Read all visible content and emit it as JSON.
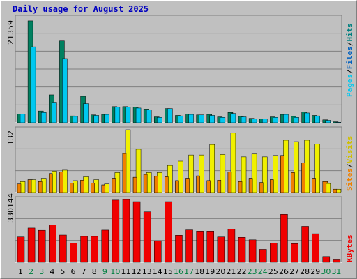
{
  "colors": {
    "background": "#c0c0c0",
    "title": "#0000c0",
    "weekend_label": "#008040",
    "weekday_label": "#000000",
    "pages": "#00c8f0",
    "files": "#008060",
    "hits": "#008080",
    "sites": "#f08000",
    "visits": "#f0f000",
    "kbytes": "#f00000"
  },
  "chart_data": [
    {
      "type": "bar",
      "title": "Daily usage for August 2025",
      "ymax_label": "21359",
      "ylim": [
        0,
        21359
      ],
      "categories": [
        "1",
        "2",
        "3",
        "4",
        "5",
        "6",
        "7",
        "8",
        "9",
        "10",
        "11",
        "12",
        "13",
        "14",
        "15",
        "16",
        "17",
        "18",
        "19",
        "20",
        "21",
        "22",
        "23",
        "24",
        "25",
        "26",
        "27",
        "28",
        "29",
        "30",
        "31"
      ],
      "weekend_days": [
        "2",
        "3",
        "9",
        "10",
        "16",
        "17",
        "23",
        "24",
        "30",
        "31"
      ],
      "series": [
        {
          "name": "Hits",
          "values": [
            1800,
            20800,
            2400,
            5700,
            16700,
            1400,
            5400,
            1600,
            1700,
            3300,
            3300,
            3200,
            2800,
            1200,
            2900,
            1500,
            1800,
            1600,
            1700,
            1200,
            2100,
            1300,
            900,
            800,
            1200,
            1700,
            1300,
            2200,
            1500,
            600,
            200
          ]
        },
        {
          "name": "Files",
          "values": [
            1800,
            15500,
            2100,
            4200,
            13100,
            1300,
            3900,
            1500,
            1700,
            3200,
            3200,
            3000,
            2600,
            1100,
            2900,
            1400,
            1700,
            1600,
            1500,
            1100,
            1900,
            1200,
            800,
            800,
            1100,
            1700,
            1100,
            2000,
            1400,
            500,
            100
          ]
        },
        {
          "name": "Pages",
          "values": [
            0,
            0,
            0,
            0,
            0,
            0,
            0,
            0,
            0,
            0,
            0,
            0,
            0,
            0,
            0,
            0,
            0,
            0,
            0,
            0,
            0,
            0,
            0,
            0,
            0,
            0,
            0,
            0,
            0,
            0,
            0
          ]
        }
      ],
      "legend": [
        "Pages",
        "Files",
        "Hits"
      ]
    },
    {
      "type": "bar",
      "ymax_label": "132",
      "ylim": [
        0,
        132
      ],
      "categories": [
        "1",
        "2",
        "3",
        "4",
        "5",
        "6",
        "7",
        "8",
        "9",
        "10",
        "11",
        "12",
        "13",
        "14",
        "15",
        "16",
        "17",
        "18",
        "19",
        "20",
        "21",
        "22",
        "23",
        "24",
        "25",
        "26",
        "27",
        "28",
        "29",
        "30",
        "31"
      ],
      "series": [
        {
          "name": "Visits",
          "values": [
            23,
            27,
            30,
            45,
            47,
            25,
            33,
            27,
            18,
            42,
            132,
            91,
            42,
            42,
            57,
            66,
            79,
            79,
            101,
            80,
            125,
            75,
            81,
            75,
            78,
            110,
            107,
            110,
            102,
            19,
            7
          ]
        },
        {
          "name": "Sites",
          "values": [
            18,
            27,
            23,
            40,
            43,
            20,
            26,
            20,
            16,
            30,
            82,
            32,
            38,
            34,
            33,
            25,
            30,
            35,
            25,
            26,
            43,
            23,
            30,
            21,
            27,
            78,
            42,
            62,
            30,
            23,
            7
          ]
        }
      ],
      "legend": [
        "Sites",
        "Visits"
      ]
    },
    {
      "type": "bar",
      "ymax_label": "330144",
      "ylim": [
        0,
        330144
      ],
      "categories": [
        "1",
        "2",
        "3",
        "4",
        "5",
        "6",
        "7",
        "8",
        "9",
        "10",
        "11",
        "12",
        "13",
        "14",
        "15",
        "16",
        "17",
        "18",
        "19",
        "20",
        "21",
        "22",
        "23",
        "24",
        "25",
        "26",
        "27",
        "28",
        "29",
        "30",
        "31"
      ],
      "series": [
        {
          "name": "KBytes",
          "values": [
            133000,
            180000,
            168000,
            196000,
            143000,
            100000,
            136000,
            136000,
            169000,
            327000,
            330000,
            319000,
            265000,
            113000,
            319000,
            142000,
            170000,
            164000,
            164000,
            133000,
            175000,
            131000,
            118000,
            68000,
            100000,
            252000,
            98000,
            189000,
            150000,
            30000,
            13000
          ]
        }
      ],
      "legend": [
        "KBytes"
      ]
    }
  ]
}
